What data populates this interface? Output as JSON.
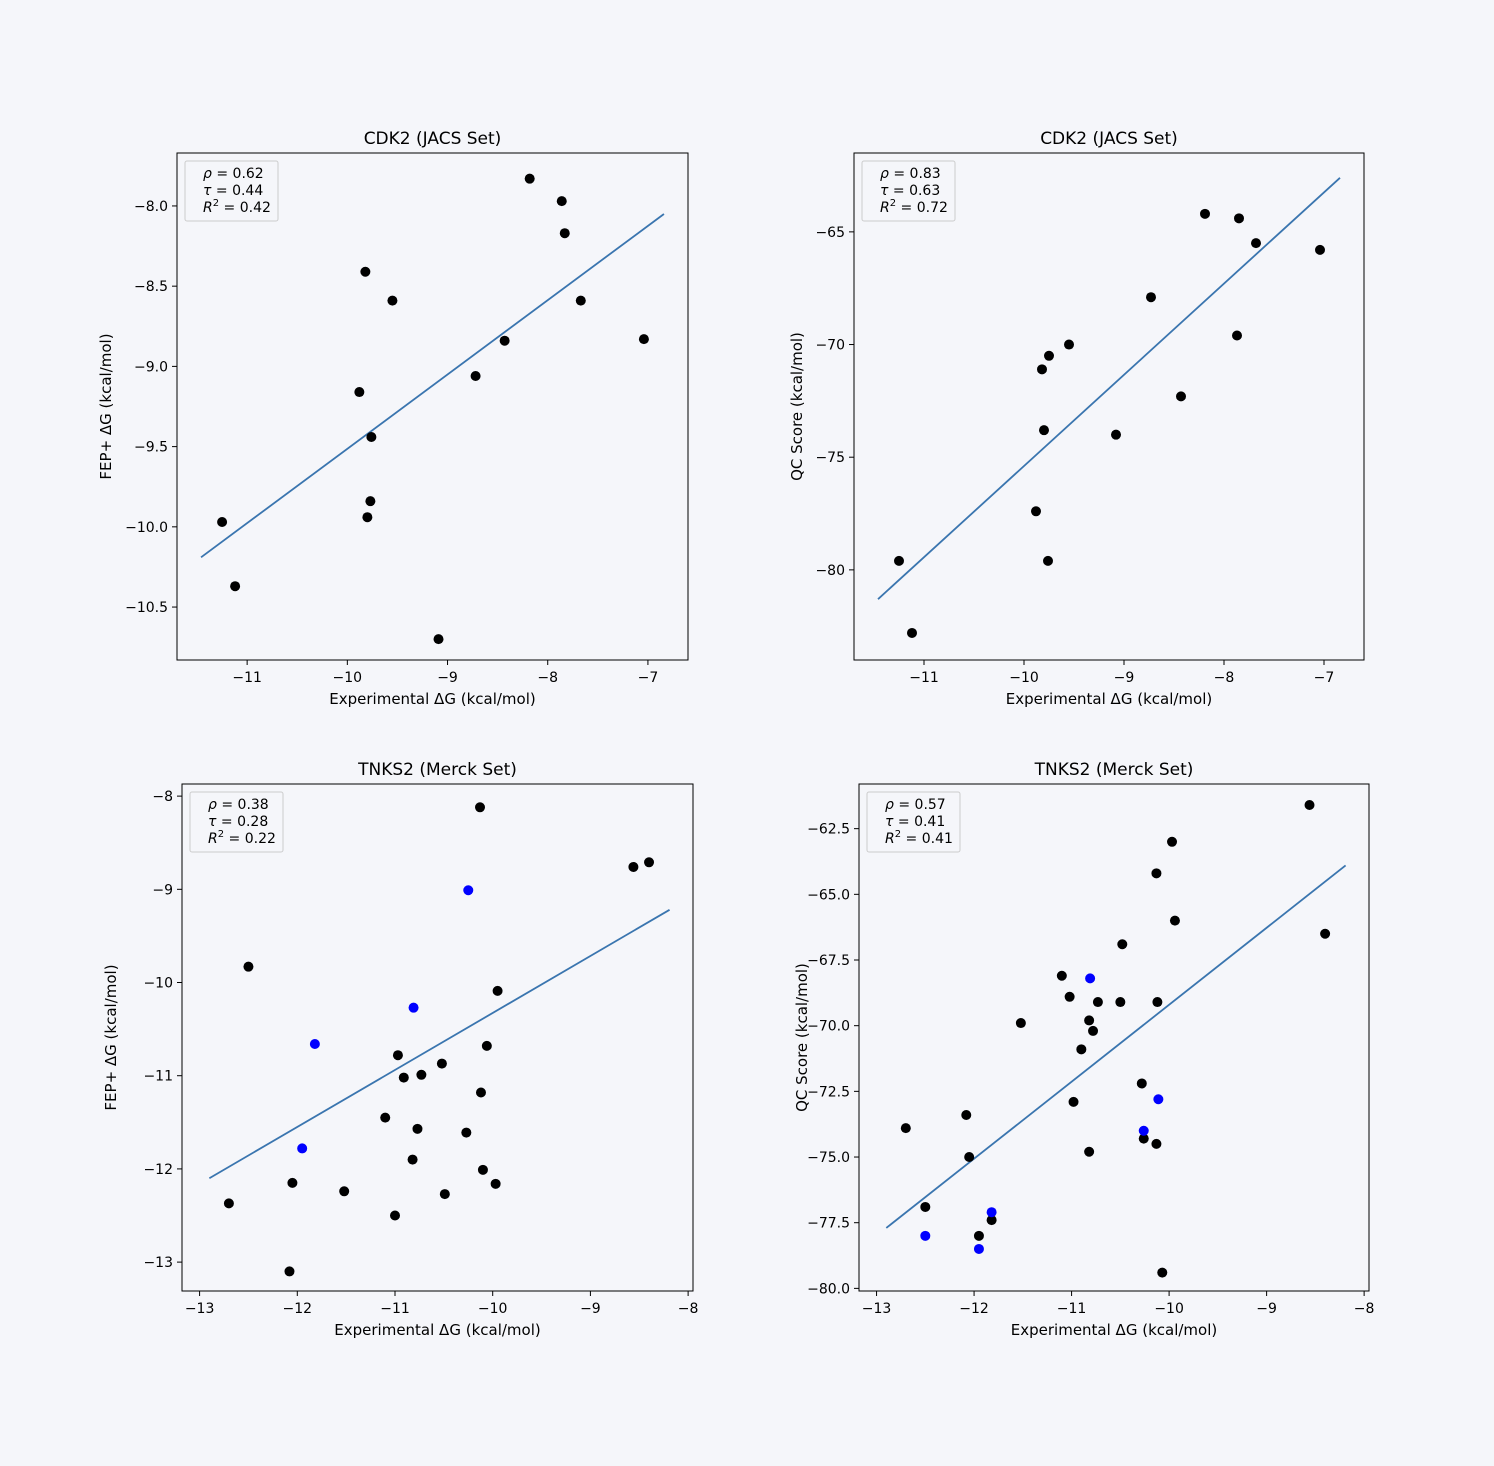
{
  "chart_data": [
    {
      "type": "scatter",
      "title": "CDK2 (JACS Set)",
      "xlabel": "Experimental ΔG (kcal/mol)",
      "ylabel": "FEP+ ΔG (kcal/mol)",
      "xlim": [
        -11.7,
        -6.6
      ],
      "ylim": [
        -10.83,
        -7.67
      ],
      "xticks": [
        -11,
        -10,
        -9,
        -8,
        -7
      ],
      "yticks": [
        -10.5,
        -10.0,
        -9.5,
        -9.0,
        -8.5,
        -8.0
      ],
      "ytick_labels": [
        "−10.5",
        "−10.0",
        "−9.5",
        "−9.0",
        "−8.5",
        "−8.0"
      ],
      "xtick_labels": [
        "−11",
        "−10",
        "−9",
        "−8",
        "−7"
      ],
      "stats": {
        "rho": "0.62",
        "tau": "0.44",
        "r2": "0.42"
      },
      "fit": {
        "x": [
          -11.46,
          -6.84
        ],
        "y": [
          -10.19,
          -8.05
        ]
      },
      "points": [
        {
          "x": -11.25,
          "y": -9.97,
          "color": "#000000"
        },
        {
          "x": -11.12,
          "y": -10.37,
          "color": "#000000"
        },
        {
          "x": -9.88,
          "y": -9.16,
          "color": "#000000"
        },
        {
          "x": -9.82,
          "y": -8.41,
          "color": "#000000"
        },
        {
          "x": -9.8,
          "y": -9.94,
          "color": "#000000"
        },
        {
          "x": -9.77,
          "y": -9.84,
          "color": "#000000"
        },
        {
          "x": -9.76,
          "y": -9.44,
          "color": "#000000"
        },
        {
          "x": -9.55,
          "y": -8.59,
          "color": "#000000"
        },
        {
          "x": -9.09,
          "y": -10.7,
          "color": "#000000"
        },
        {
          "x": -8.72,
          "y": -9.06,
          "color": "#000000"
        },
        {
          "x": -8.43,
          "y": -8.84,
          "color": "#000000"
        },
        {
          "x": -8.18,
          "y": -7.83,
          "color": "#000000"
        },
        {
          "x": -7.86,
          "y": -7.97,
          "color": "#000000"
        },
        {
          "x": -7.83,
          "y": -8.17,
          "color": "#000000"
        },
        {
          "x": -7.67,
          "y": -8.59,
          "color": "#000000"
        },
        {
          "x": -7.04,
          "y": -8.83,
          "color": "#000000"
        }
      ]
    },
    {
      "type": "scatter",
      "title": "CDK2 (JACS Set)",
      "xlabel": "Experimental ΔG (kcal/mol)",
      "ylabel": "QC Score (kcal/mol)",
      "xlim": [
        -11.7,
        -6.6
      ],
      "ylim": [
        -84.0,
        -61.5
      ],
      "xticks": [
        -11,
        -10,
        -9,
        -8,
        -7
      ],
      "yticks": [
        -80,
        -75,
        -70,
        -65
      ],
      "ytick_labels": [
        "−80",
        "−75",
        "−70",
        "−65"
      ],
      "xtick_labels": [
        "−11",
        "−10",
        "−9",
        "−8",
        "−7"
      ],
      "stats": {
        "rho": "0.83",
        "tau": "0.63",
        "r2": "0.72"
      },
      "fit": {
        "x": [
          -11.46,
          -6.84
        ],
        "y": [
          -81.3,
          -62.6
        ]
      },
      "points": [
        {
          "x": -11.25,
          "y": -79.6,
          "color": "#000000"
        },
        {
          "x": -11.12,
          "y": -82.8,
          "color": "#000000"
        },
        {
          "x": -9.88,
          "y": -77.4,
          "color": "#000000"
        },
        {
          "x": -9.82,
          "y": -71.1,
          "color": "#000000"
        },
        {
          "x": -9.8,
          "y": -73.8,
          "color": "#000000"
        },
        {
          "x": -9.76,
          "y": -79.6,
          "color": "#000000"
        },
        {
          "x": -9.75,
          "y": -70.5,
          "color": "#000000"
        },
        {
          "x": -9.55,
          "y": -70.0,
          "color": "#000000"
        },
        {
          "x": -9.08,
          "y": -74.0,
          "color": "#000000"
        },
        {
          "x": -8.73,
          "y": -67.9,
          "color": "#000000"
        },
        {
          "x": -8.43,
          "y": -72.3,
          "color": "#000000"
        },
        {
          "x": -8.19,
          "y": -64.2,
          "color": "#000000"
        },
        {
          "x": -7.87,
          "y": -69.6,
          "color": "#000000"
        },
        {
          "x": -7.85,
          "y": -64.4,
          "color": "#000000"
        },
        {
          "x": -7.68,
          "y": -65.5,
          "color": "#000000"
        },
        {
          "x": -7.04,
          "y": -65.8,
          "color": "#000000"
        }
      ]
    },
    {
      "type": "scatter",
      "title": "TNKS2 (Merck Set)",
      "xlabel": "Experimental ΔG (kcal/mol)",
      "ylabel": "FEP+ ΔG (kcal/mol)",
      "xlim": [
        -13.18,
        -7.95
      ],
      "ylim": [
        -13.31,
        -7.87
      ],
      "xticks": [
        -13,
        -12,
        -11,
        -10,
        -9,
        -8
      ],
      "yticks": [
        -13,
        -12,
        -11,
        -10,
        -9,
        -8
      ],
      "ytick_labels": [
        "−13",
        "−12",
        "−11",
        "−10",
        "−9",
        "−8"
      ],
      "xtick_labels": [
        "−13",
        "−12",
        "−11",
        "−10",
        "−9",
        "−8"
      ],
      "stats": {
        "rho": "0.38",
        "tau": "0.28",
        "r2": "0.22"
      },
      "fit": {
        "x": [
          -12.9,
          -8.19
        ],
        "y": [
          -12.1,
          -9.22
        ]
      },
      "points": [
        {
          "x": -12.7,
          "y": -12.37,
          "color": "#000000"
        },
        {
          "x": -12.5,
          "y": -9.83,
          "color": "#000000"
        },
        {
          "x": -12.08,
          "y": -13.1,
          "color": "#000000"
        },
        {
          "x": -12.05,
          "y": -12.15,
          "color": "#000000"
        },
        {
          "x": -11.95,
          "y": -11.78,
          "color": "#0000ff"
        },
        {
          "x": -11.82,
          "y": -10.66,
          "color": "#0000ff"
        },
        {
          "x": -11.52,
          "y": -12.24,
          "color": "#000000"
        },
        {
          "x": -11.1,
          "y": -11.45,
          "color": "#000000"
        },
        {
          "x": -11.0,
          "y": -12.5,
          "color": "#000000"
        },
        {
          "x": -10.97,
          "y": -10.78,
          "color": "#000000"
        },
        {
          "x": -10.91,
          "y": -11.02,
          "color": "#000000"
        },
        {
          "x": -10.82,
          "y": -11.9,
          "color": "#000000"
        },
        {
          "x": -10.81,
          "y": -10.27,
          "color": "#0000ff"
        },
        {
          "x": -10.77,
          "y": -11.57,
          "color": "#000000"
        },
        {
          "x": -10.73,
          "y": -10.99,
          "color": "#000000"
        },
        {
          "x": -10.52,
          "y": -10.87,
          "color": "#000000"
        },
        {
          "x": -10.49,
          "y": -12.27,
          "color": "#000000"
        },
        {
          "x": -10.27,
          "y": -11.61,
          "color": "#000000"
        },
        {
          "x": -10.25,
          "y": -9.01,
          "color": "#0000ff"
        },
        {
          "x": -10.13,
          "y": -8.12,
          "color": "#000000"
        },
        {
          "x": -10.12,
          "y": -11.18,
          "color": "#000000"
        },
        {
          "x": -10.1,
          "y": -12.01,
          "color": "#000000"
        },
        {
          "x": -10.06,
          "y": -10.68,
          "color": "#000000"
        },
        {
          "x": -9.97,
          "y": -12.16,
          "color": "#000000"
        },
        {
          "x": -9.95,
          "y": -10.09,
          "color": "#000000"
        },
        {
          "x": -8.56,
          "y": -8.76,
          "color": "#000000"
        },
        {
          "x": -8.4,
          "y": -8.71,
          "color": "#000000"
        }
      ]
    },
    {
      "type": "scatter",
      "title": "TNKS2 (Merck Set)",
      "xlabel": "Experimental ΔG (kcal/mol)",
      "ylabel": "QC Score (kcal/mol)",
      "xlim": [
        -13.18,
        -7.95
      ],
      "ylim": [
        -80.1,
        -60.8
      ],
      "xticks": [
        -13,
        -12,
        -11,
        -10,
        -9,
        -8
      ],
      "yticks": [
        -80.0,
        -77.5,
        -75.0,
        -72.5,
        -70.0,
        -67.5,
        -65.0,
        -62.5
      ],
      "ytick_labels": [
        "−80.0",
        "−77.5",
        "−75.0",
        "−72.5",
        "−70.0",
        "−67.5",
        "−65.0",
        "−62.5"
      ],
      "xtick_labels": [
        "−13",
        "−12",
        "−11",
        "−10",
        "−9",
        "−8"
      ],
      "stats": {
        "rho": "0.57",
        "tau": "0.41",
        "r2": "0.41"
      },
      "fit": {
        "x": [
          -12.9,
          -8.19
        ],
        "y": [
          -77.7,
          -63.9
        ]
      },
      "points": [
        {
          "x": -12.7,
          "y": -73.9,
          "color": "#000000"
        },
        {
          "x": -12.5,
          "y": -76.9,
          "color": "#000000"
        },
        {
          "x": -12.5,
          "y": -78.0,
          "color": "#0000ff"
        },
        {
          "x": -12.08,
          "y": -73.4,
          "color": "#000000"
        },
        {
          "x": -12.05,
          "y": -75.0,
          "color": "#000000"
        },
        {
          "x": -11.95,
          "y": -78.0,
          "color": "#000000"
        },
        {
          "x": -11.95,
          "y": -78.5,
          "color": "#0000ff"
        },
        {
          "x": -11.82,
          "y": -77.4,
          "color": "#000000"
        },
        {
          "x": -11.82,
          "y": -77.1,
          "color": "#0000ff"
        },
        {
          "x": -11.52,
          "y": -69.9,
          "color": "#000000"
        },
        {
          "x": -11.1,
          "y": -68.1,
          "color": "#000000"
        },
        {
          "x": -11.02,
          "y": -68.9,
          "color": "#000000"
        },
        {
          "x": -10.98,
          "y": -72.9,
          "color": "#000000"
        },
        {
          "x": -10.9,
          "y": -70.9,
          "color": "#000000"
        },
        {
          "x": -10.82,
          "y": -69.8,
          "color": "#000000"
        },
        {
          "x": -10.82,
          "y": -74.8,
          "color": "#000000"
        },
        {
          "x": -10.81,
          "y": -68.2,
          "color": "#0000ff"
        },
        {
          "x": -10.78,
          "y": -70.2,
          "color": "#000000"
        },
        {
          "x": -10.73,
          "y": -69.1,
          "color": "#000000"
        },
        {
          "x": -10.5,
          "y": -69.1,
          "color": "#000000"
        },
        {
          "x": -10.48,
          "y": -66.9,
          "color": "#000000"
        },
        {
          "x": -10.28,
          "y": -72.2,
          "color": "#000000"
        },
        {
          "x": -10.26,
          "y": -74.3,
          "color": "#000000"
        },
        {
          "x": -10.26,
          "y": -74.0,
          "color": "#0000ff"
        },
        {
          "x": -10.13,
          "y": -64.2,
          "color": "#000000"
        },
        {
          "x": -10.13,
          "y": -74.5,
          "color": "#000000"
        },
        {
          "x": -10.12,
          "y": -69.1,
          "color": "#000000"
        },
        {
          "x": -10.11,
          "y": -72.8,
          "color": "#0000ff"
        },
        {
          "x": -10.07,
          "y": -79.4,
          "color": "#000000"
        },
        {
          "x": -9.97,
          "y": -63.0,
          "color": "#000000"
        },
        {
          "x": -9.94,
          "y": -66.0,
          "color": "#000000"
        },
        {
          "x": -8.56,
          "y": -61.6,
          "color": "#000000"
        },
        {
          "x": -8.4,
          "y": -66.5,
          "color": "#000000"
        }
      ]
    }
  ]
}
